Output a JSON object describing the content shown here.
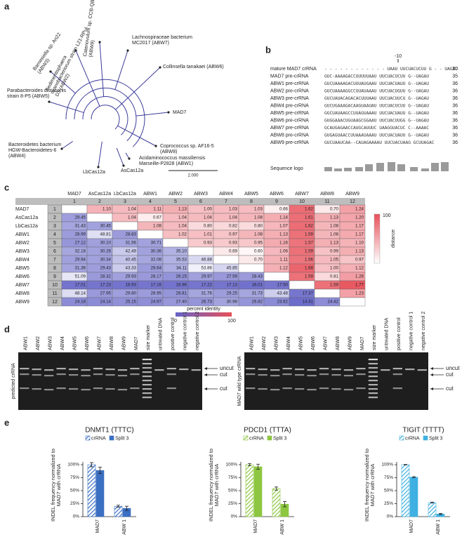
{
  "panels": [
    "a",
    "b",
    "c",
    "d",
    "e"
  ],
  "tree": {
    "labels": [
      "Sedimentisphaera cyanobacteriorum strain L21-RPul-D3 (ABW2)",
      "Catenovulum sp. CCB-QB4 (ABW9)",
      "Lachnospiraceae bacterium MC2017 (ABW7)",
      "Barnesiella sp. An22 (ABW3)",
      "Collinsella tanakaei (ABW6)",
      "Parabacteroides distasonis strain 8-P5 (ABW5)",
      "MAD7",
      "Bacteroidetes bacterium HGW-Bacteroidetes-6 (ABW4)",
      "Coprococcus sp. AF16-5 (ABW8)",
      "LbCas12a",
      "AsCas12a",
      "Acidaminococcus massiliensis Marseille-P2828 (ABW1)"
    ],
    "scale": "2.000"
  },
  "alignment": {
    "tick": "-10",
    "logo_label": "Sequence logo",
    "rows": [
      {
        "name": "mature MAD7 crRNA",
        "sequence": "- - - - - - - - - - - - UAAU  UUCUACUCUU  G - - UAGAU",
        "length": 20
      },
      {
        "name": "MAD7 pre-crRNA",
        "sequence": "GUC-AAAAGACCUUUUUAAU  UUCUACUCUU  G--UAGAU",
        "length": 35
      },
      {
        "name": "ABW1 pre-crRNA",
        "sequence": "GUCUAAAAGACUUUAUGAAU  UUCUACUAUU  G--UAGAU",
        "length": 36
      },
      {
        "name": "ABW2 pre-crRNA",
        "sequence": "GUCUAAAAGGCCUUAUAAAU  UUCUACUGUU  G--UAGAU",
        "length": 36
      },
      {
        "name": "ABW3 pre-crRNA",
        "sequence": "GUCUAUACAGACACUUUAAU  UUCUACUUCU  G--UAGAU",
        "length": 36
      },
      {
        "name": "ABW4 pre-crRNA",
        "sequence": "GUCUGAAAGACAAGUAAUAU  UUCUACUCUU  G--UAGAU",
        "length": 36
      },
      {
        "name": "ABW5 pre-crRNA",
        "sequence": "GGCUAUAAGCCUUAGUAAAU  UUCUACUAUU  G--UAGAU",
        "length": 36
      },
      {
        "name": "ABW6 pre-crRNA",
        "sequence": "GUGGAAACUGUAAGCGGAAU  UUCUACUUGG  G--UAGAU",
        "length": 36
      },
      {
        "name": "ABW7 pre-crRNA",
        "sequence": "GCAUGAGAACCAUGCAUUUC  UAAGGUACUC  C--AAAAC",
        "length": 36
      },
      {
        "name": "ABW8 pre-crRNA",
        "sequence": "GUGAGUAACCUUAAAUAAAU  UUCUACUAUU  G--UAGAU",
        "length": 36
      },
      {
        "name": "ABW9 pre-crRNA",
        "sequence": "GUCUAAUCAA--CAUAGAAAAU  UUCUACUAAG  GCUUAGAC",
        "length": 36
      }
    ]
  },
  "matrix": {
    "row_labels": [
      "MAD7",
      "AsCas12a",
      "LbCas12a",
      "ABW1",
      "ABW2",
      "ABW3",
      "ABW4",
      "ABW5",
      "ABW6",
      "ABW7",
      "ABW8",
      "ABW9"
    ],
    "column_labels": [
      "MAD7",
      "AsCas12a",
      "LbCas12a",
      "ABW1",
      "ABW2",
      "ABW3",
      "ABW4",
      "ABW5",
      "ABW6",
      "ABW7",
      "ABW8",
      "ABW9"
    ],
    "numbers": [
      1,
      2,
      3,
      4,
      5,
      6,
      7,
      8,
      9,
      10,
      11,
      12
    ],
    "cells": [
      [
        null,
        "1.10",
        "1.04",
        "1.11",
        "1.13",
        "1.00",
        "1.03",
        "1.03",
        "0.66",
        "1.62",
        "0.70",
        "1.24"
      ],
      [
        "29.45",
        null,
        "1.04",
        "0.67",
        "1.04",
        "1.04",
        "1.04",
        "1.08",
        "1.14",
        "1.61",
        "1.13",
        "1.20"
      ],
      [
        "31.43",
        "30.45",
        null,
        "1.08",
        "1.04",
        "0.80",
        "0.82",
        "0.80",
        "1.07",
        "1.62",
        "1.08",
        "1.17"
      ],
      [
        "28.99",
        "48.81",
        "28.83",
        null,
        "1.02",
        "1.01",
        "0.97",
        "1.08",
        "1.13",
        "1.59",
        "1.08",
        "1.17"
      ],
      [
        "27.12",
        "30.10",
        "31.56",
        "30.71",
        null,
        "0.93",
        "0.93",
        "0.95",
        "1.16",
        "1.57",
        "1.13",
        "1.10"
      ],
      [
        "32.18",
        "30.26",
        "42.49",
        "30.36",
        "35.10",
        null,
        "0.69",
        "0.60",
        "1.06",
        "1.59",
        "0.99",
        "1.13"
      ],
      [
        "29.94",
        "30.34",
        "40.45",
        "32.08",
        "35.53",
        "46.88",
        null,
        "0.70",
        "1.11",
        "1.56",
        "1.05",
        "0.97"
      ],
      [
        "31.36",
        "29.43",
        "43.33",
        "28.64",
        "34.11",
        "53.86",
        "45.85",
        null,
        "1.12",
        "1.68",
        "1.00",
        "1.12"
      ],
      [
        "51.09",
        "28.32",
        "29.93",
        "28.17",
        "26.15",
        "29.97",
        "27.59",
        "28.43",
        null,
        "1.59",
        "0.81",
        "1.26"
      ],
      [
        "17.01",
        "17.23",
        "16.93",
        "17.16",
        "16.96",
        "17.22",
        "17.13",
        "16.01",
        "17.50",
        null,
        "1.59",
        "1.77"
      ],
      [
        "48.14",
        "27.95",
        "29.80",
        "28.95",
        "26.81",
        "31.76",
        "29.25",
        "31.73",
        "43.48",
        "17.37",
        null,
        "1.23"
      ],
      [
        "24.18",
        "24.14",
        "25.15",
        "24.97",
        "27.40",
        "26.73",
        "30.98",
        "26.82",
        "23.62",
        "14.41",
        "24.42",
        null
      ]
    ],
    "distance_legend": {
      "label": "distance",
      "ticks": [
        100
      ]
    },
    "identity_legend": {
      "label": "percent identity",
      "ticks": [
        0,
        100
      ]
    }
  },
  "gels": [
    {
      "side_label": "predicted crRNA",
      "lanes": [
        "ABW1",
        "ABW2",
        "ABW3",
        "ABW4",
        "ABW5",
        "ABW6",
        "ABW7",
        "ABW8",
        "ABW9",
        "MAD7",
        "size marker",
        "untreated DNA",
        "positive control",
        "negative control 1",
        "negative control 2"
      ],
      "markers": [
        "uncut",
        "cut",
        "cut"
      ]
    },
    {
      "side_label": "MAD7 wild type crRNA",
      "lanes": [
        "ABW1",
        "ABW2",
        "ABW3",
        "ABW4",
        "ABW5",
        "ABW6",
        "ABW7",
        "ABW8",
        "ABW9",
        "MAD7",
        "size marker",
        "untreated DNA",
        "positive control",
        "negative control 1",
        "negative control 2"
      ],
      "markers": [
        "uncut",
        "cut",
        "cut"
      ]
    }
  ],
  "chart_data": [
    {
      "type": "bar",
      "title": "DNMT1 (TTTC)",
      "ylabel": "INDEL frequency normalized to MAD7 with crRNA",
      "categories": [
        "MAD7",
        "ABW 1"
      ],
      "series": [
        {
          "name": "crRNA",
          "color": "#3b6fc2",
          "hatch": true,
          "values": [
            100,
            20
          ],
          "errors": [
            4,
            2
          ]
        },
        {
          "name": "Split 3",
          "color": "#3b6fc2",
          "hatch": false,
          "values": [
            89,
            16
          ],
          "errors": [
            6,
            4
          ]
        }
      ],
      "ylim": [
        0,
        100
      ],
      "yticks": [
        {
          "value": 0,
          "label": "0%"
        },
        {
          "value": 25,
          "label": "25%"
        },
        {
          "value": 50,
          "label": "50%"
        },
        {
          "value": 75,
          "label": "75%"
        },
        {
          "value": 100,
          "label": "100%"
        }
      ]
    },
    {
      "type": "bar",
      "title": "PDCD1 (TTTA)",
      "ylabel": "INDEL frequency normalized to MAD7 with crRNA",
      "categories": [
        "MAD7",
        "ABW 1"
      ],
      "series": [
        {
          "name": "crRNA",
          "color": "#8dc641",
          "hatch": true,
          "values": [
            100,
            54
          ],
          "errors": [
            2,
            3
          ]
        },
        {
          "name": "Split 3",
          "color": "#8dc641",
          "hatch": false,
          "values": [
            96,
            24
          ],
          "errors": [
            5,
            5
          ]
        }
      ],
      "ylim": [
        0,
        100
      ],
      "yticks": [
        {
          "value": 0,
          "label": "0%"
        },
        {
          "value": 25,
          "label": "25%"
        },
        {
          "value": 50,
          "label": "50%"
        },
        {
          "value": 75,
          "label": "75%"
        },
        {
          "value": 100,
          "label": "100%"
        }
      ]
    },
    {
      "type": "bar",
      "title": "TIGIT (TTTT)",
      "ylabel": "INDEL frequency normalized to MAD7 with crRNA",
      "categories": [
        "MAD7",
        "ABW 1"
      ],
      "series": [
        {
          "name": "crRNA",
          "color": "#40b0e2",
          "hatch": true,
          "values": [
            100,
            27
          ],
          "errors": [
            0.5,
            1
          ]
        },
        {
          "name": "Split 3",
          "color": "#40b0e2",
          "hatch": false,
          "values": [
            76,
            5
          ],
          "errors": [
            1,
            1
          ]
        }
      ],
      "ylim": [
        0,
        100
      ],
      "yticks": [
        {
          "value": 0,
          "label": "0%"
        },
        {
          "value": 25,
          "label": "25%"
        },
        {
          "value": 50,
          "label": "50%"
        },
        {
          "value": 75,
          "label": "75%"
        },
        {
          "value": 100,
          "label": "100%"
        }
      ]
    }
  ]
}
